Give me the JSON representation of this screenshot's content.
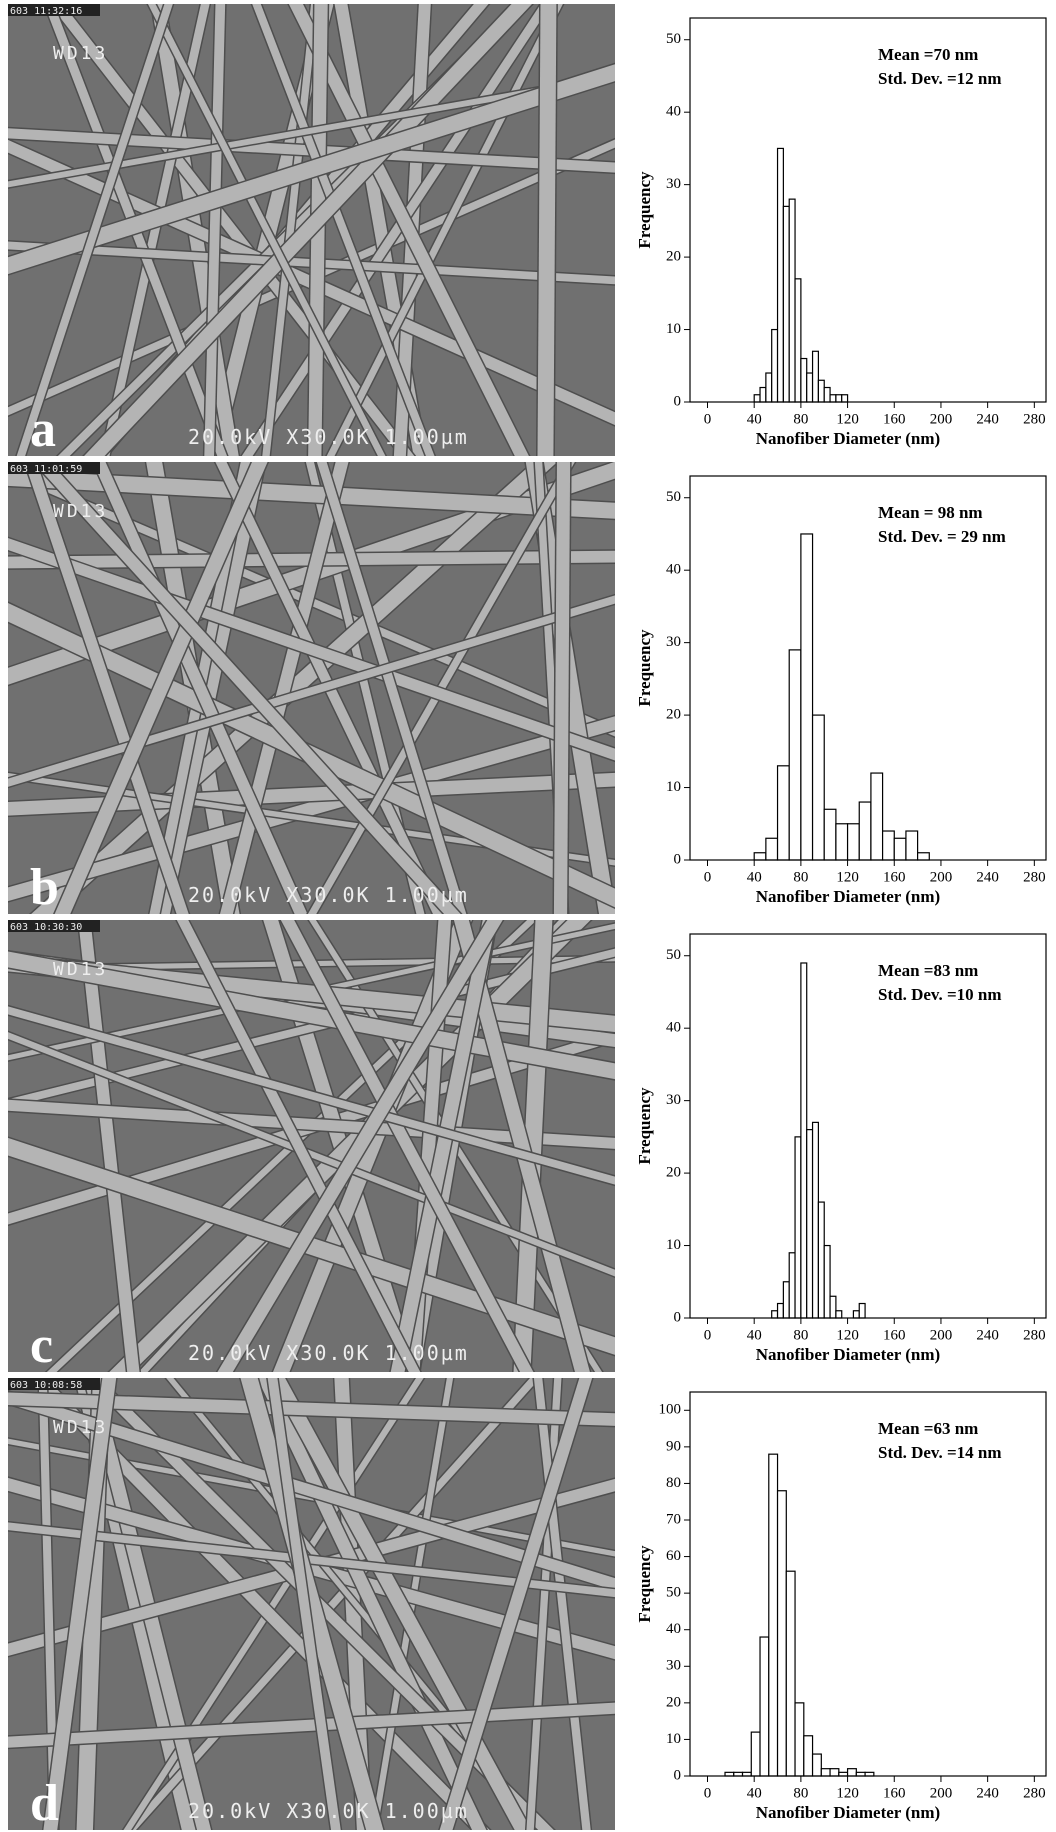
{
  "images": [
    {
      "label": "a",
      "timestamp": "603 11:32:16",
      "working_distance": "WD13",
      "info": "20.0kV X30.0K 1.00µm"
    },
    {
      "label": "b",
      "timestamp": "603 11:01:59",
      "working_distance": "WD13",
      "info": "20.0kV X30.0K 1.00µm"
    },
    {
      "label": "c",
      "timestamp": "603 10:30:30",
      "working_distance": "WD13",
      "info": "20.0kV X30.0K 1.00µm"
    },
    {
      "label": "d",
      "timestamp": "603 10:08:58",
      "working_distance": "WD13",
      "info": "20.0kV X30.0K 1.00µm"
    }
  ],
  "chart_data": [
    {
      "type": "histogram",
      "x_label": "Nanofiber Diameter (nm)",
      "y_label": "Frequency",
      "annotations": [
        "Mean =70 nm",
        "Std. Dev. =12 nm"
      ],
      "color": "#ffffff",
      "edge_color": "#000000",
      "bins": [
        40,
        45,
        50,
        55,
        60,
        65,
        70,
        75,
        80,
        85,
        90,
        95,
        100,
        105,
        110,
        115,
        120
      ],
      "values": [
        1,
        2,
        4,
        10,
        35,
        27,
        28,
        17,
        6,
        4,
        7,
        3,
        2,
        1,
        1,
        1
      ],
      "xlim": [
        -15,
        290
      ],
      "xticks": [
        0,
        40,
        80,
        120,
        160,
        200,
        240,
        280
      ],
      "ylim": [
        0,
        53
      ],
      "yticks": [
        0,
        10,
        20,
        30,
        40,
        50
      ]
    },
    {
      "type": "histogram",
      "x_label": "Nanofiber Diameter (nm)",
      "y_label": "Frequency",
      "annotations": [
        "Mean = 98 nm",
        "Std. Dev. = 29 nm"
      ],
      "color": "#ffffff",
      "edge_color": "#000000",
      "bins": [
        40,
        50,
        60,
        70,
        80,
        90,
        100,
        110,
        120,
        130,
        140,
        150,
        160,
        170,
        180,
        190
      ],
      "values": [
        1,
        3,
        13,
        29,
        45,
        20,
        7,
        5,
        5,
        8,
        12,
        4,
        3,
        4,
        1
      ],
      "xlim": [
        -15,
        290
      ],
      "xticks": [
        0,
        40,
        80,
        120,
        160,
        200,
        240,
        280
      ],
      "ylim": [
        0,
        53
      ],
      "yticks": [
        0,
        10,
        20,
        30,
        40,
        50
      ]
    },
    {
      "type": "histogram",
      "x_label": "Nanofiber Diameter (nm)",
      "y_label": "Frequency",
      "annotations": [
        "Mean =83 nm",
        "Std. Dev. =10 nm"
      ],
      "color": "#ffffff",
      "edge_color": "#000000",
      "bins": [
        55,
        60,
        65,
        70,
        75,
        80,
        85,
        90,
        95,
        100,
        105,
        110,
        115,
        120,
        125,
        130,
        135
      ],
      "values": [
        1,
        2,
        5,
        9,
        25,
        49,
        26,
        27,
        16,
        10,
        3,
        1,
        0,
        0,
        1,
        2
      ],
      "xlim": [
        -15,
        290
      ],
      "xticks": [
        0,
        40,
        80,
        120,
        160,
        200,
        240,
        280
      ],
      "ylim": [
        0,
        53
      ],
      "yticks": [
        0,
        10,
        20,
        30,
        40,
        50
      ]
    },
    {
      "type": "histogram",
      "x_label": "Nanofiber Diameter (nm)",
      "y_label": "Frequency",
      "annotations": [
        "Mean =63 nm",
        "Std. Dev. =14 nm"
      ],
      "color": "#ffffff",
      "edge_color": "#000000",
      "bins": [
        15,
        22.5,
        30,
        37.5,
        45,
        52.5,
        60,
        67.5,
        75,
        82.5,
        90,
        97.5,
        105,
        112.5,
        120,
        127.5,
        135,
        142.5
      ],
      "values": [
        1,
        1,
        1,
        12,
        38,
        88,
        78,
        56,
        20,
        11,
        6,
        2,
        2,
        1,
        2,
        1,
        1
      ],
      "xlim": [
        -15,
        290
      ],
      "xticks": [
        0,
        40,
        80,
        120,
        160,
        200,
        240,
        280
      ],
      "ylim": [
        0,
        105
      ],
      "yticks": [
        0,
        10,
        20,
        30,
        40,
        50,
        60,
        70,
        80,
        90,
        100
      ]
    }
  ]
}
